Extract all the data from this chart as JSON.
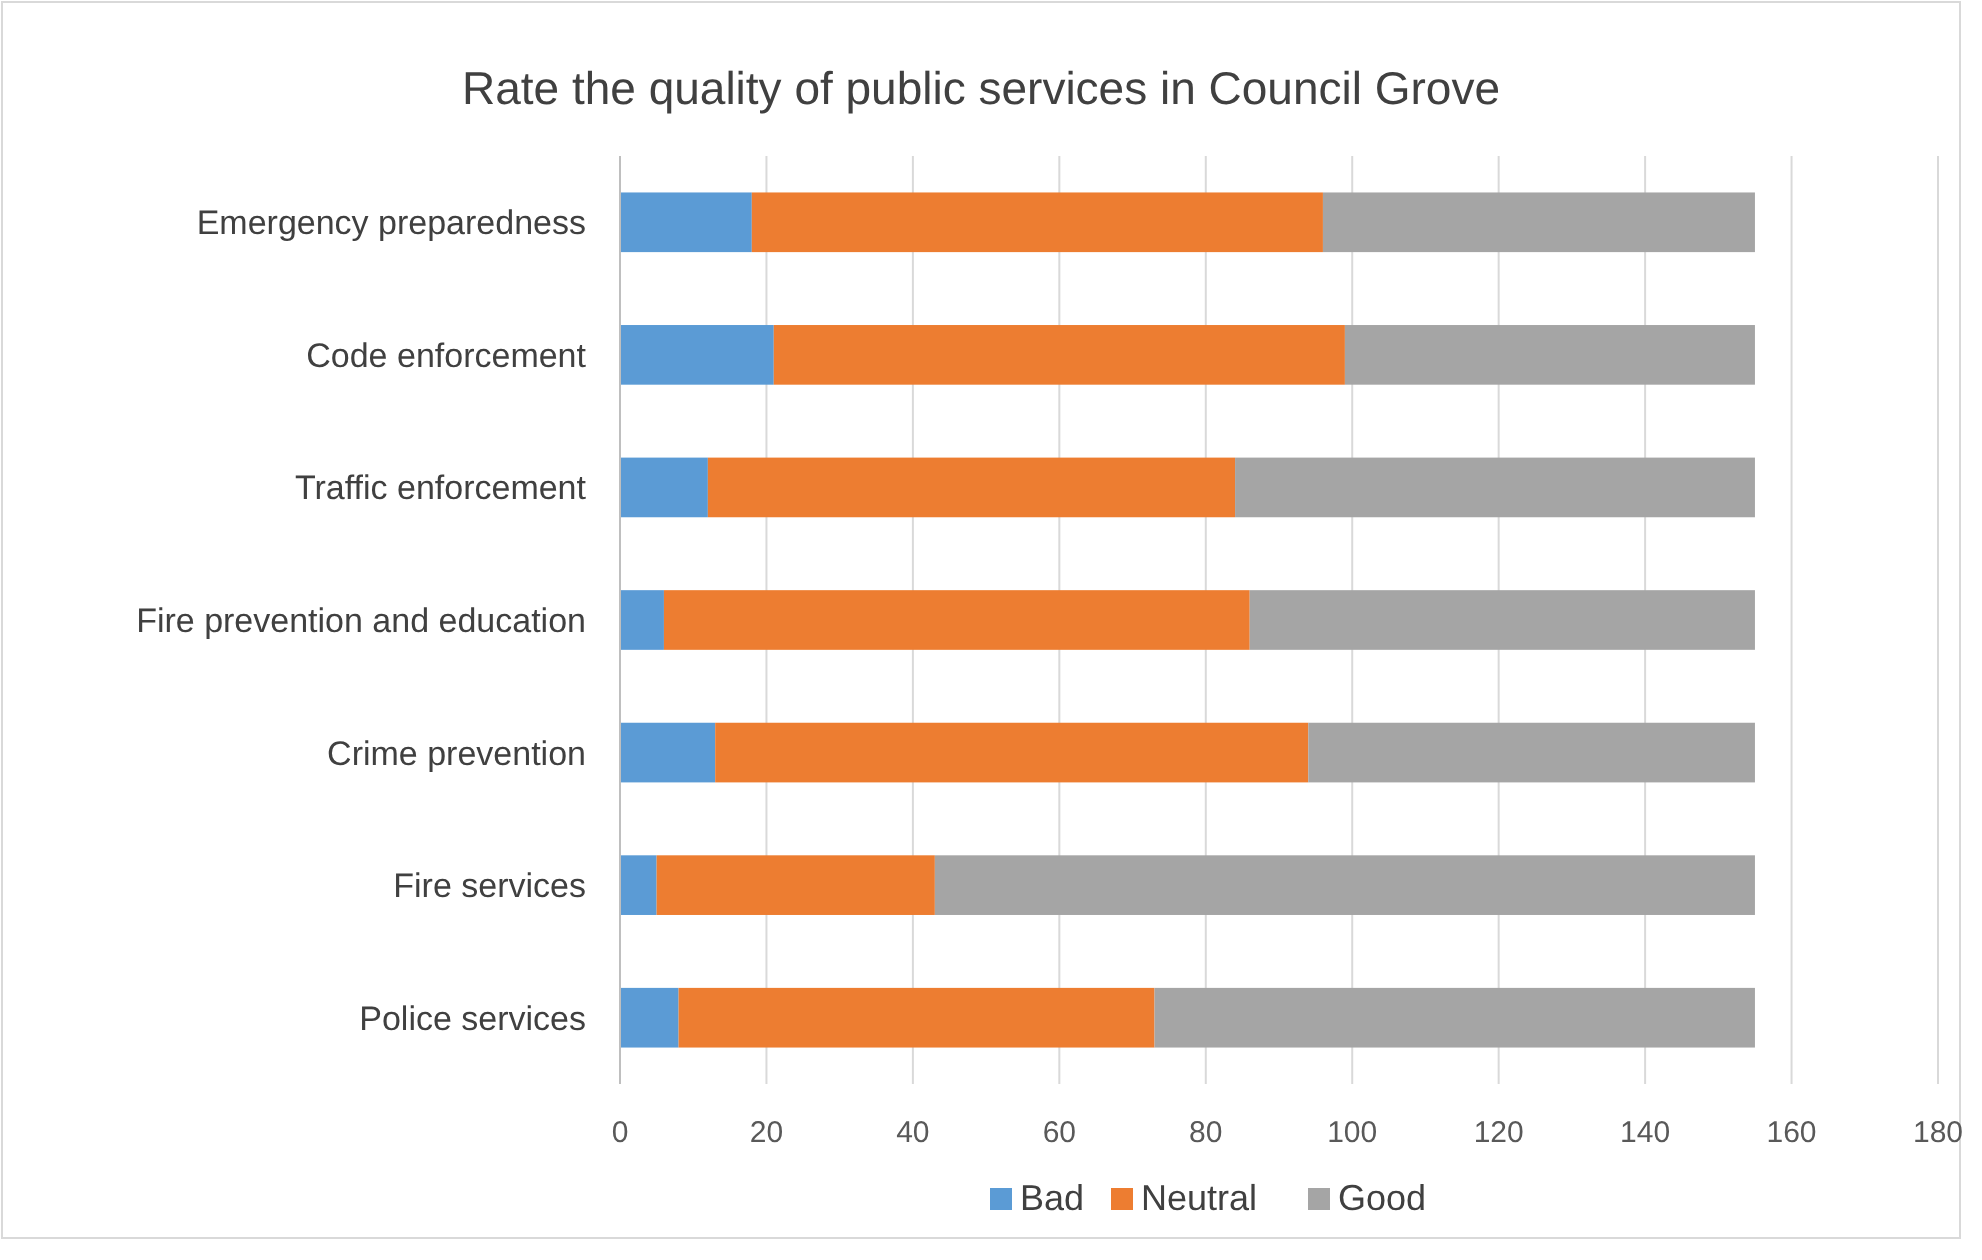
{
  "chart_data": {
    "type": "bar",
    "title": "Rate the quality of public  services in Council Grove",
    "orientation": "horizontal",
    "stacked": true,
    "categories": [
      "Emergency preparedness",
      "Code enforcement",
      "Traffic enforcement",
      "Fire prevention and education",
      "Crime prevention",
      "Fire services",
      "Police services"
    ],
    "series": [
      {
        "name": "Bad",
        "color": "#5b9bd5",
        "values": [
          18,
          21,
          12,
          6,
          13,
          5,
          8
        ]
      },
      {
        "name": "Neutral",
        "color": "#ed7d31",
        "values": [
          78,
          78,
          72,
          80,
          81,
          38,
          65
        ]
      },
      {
        "name": "Good",
        "color": "#a5a5a5",
        "values": [
          59,
          56,
          71,
          69,
          61,
          112,
          82
        ]
      }
    ],
    "xlim": [
      0,
      180
    ],
    "xticks": [
      0,
      20,
      40,
      60,
      80,
      100,
      120,
      140,
      160,
      180
    ],
    "grid": "x",
    "legend": "bottom"
  }
}
